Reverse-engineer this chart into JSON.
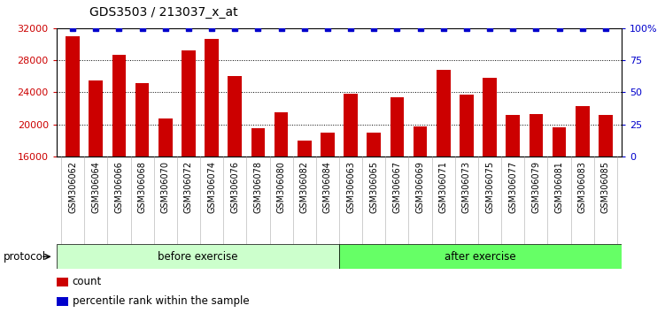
{
  "title": "GDS3503 / 213037_x_at",
  "categories": [
    "GSM306062",
    "GSM306064",
    "GSM306066",
    "GSM306068",
    "GSM306070",
    "GSM306072",
    "GSM306074",
    "GSM306076",
    "GSM306078",
    "GSM306080",
    "GSM306082",
    "GSM306084",
    "GSM306063",
    "GSM306065",
    "GSM306067",
    "GSM306069",
    "GSM306071",
    "GSM306073",
    "GSM306075",
    "GSM306077",
    "GSM306079",
    "GSM306081",
    "GSM306083",
    "GSM306085"
  ],
  "counts": [
    31000,
    25500,
    28700,
    25200,
    20700,
    29200,
    30700,
    26000,
    19500,
    21500,
    18000,
    19000,
    23800,
    19000,
    23400,
    19800,
    26800,
    23700,
    25800,
    21200,
    21300,
    19600,
    22300,
    21200
  ],
  "percentile_ranks": [
    100,
    100,
    100,
    100,
    100,
    100,
    100,
    100,
    100,
    100,
    100,
    100,
    100,
    100,
    100,
    100,
    100,
    100,
    100,
    100,
    100,
    100,
    100,
    100
  ],
  "before_count": 12,
  "after_count": 12,
  "before_label": "before exercise",
  "after_label": "after exercise",
  "protocol_label": "protocol",
  "legend_count": "count",
  "legend_percentile": "percentile rank within the sample",
  "ylim_left": [
    16000,
    32000
  ],
  "ylim_right": [
    0,
    100
  ],
  "yticks_left": [
    16000,
    20000,
    24000,
    28000,
    32000
  ],
  "yticks_right": [
    0,
    25,
    50,
    75,
    100
  ],
  "bar_color": "#cc0000",
  "dot_color": "#0000cc",
  "before_color": "#ccffcc",
  "after_color": "#66ff66",
  "grid_color": "#000000",
  "background_color": "#ffffff",
  "title_color": "#000000",
  "axis_label_color_left": "#cc0000",
  "axis_label_color_right": "#0000cc"
}
